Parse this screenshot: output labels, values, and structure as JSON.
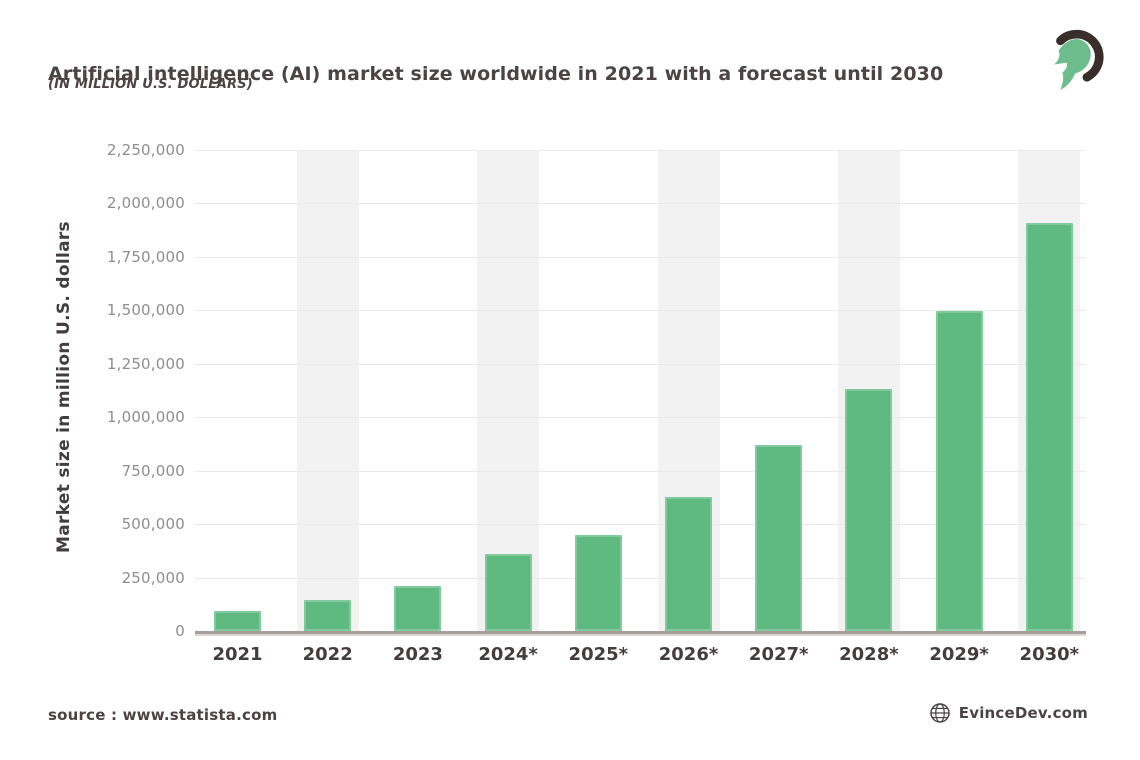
{
  "header": {
    "title": "Artificial intelligence (AI) market size worldwide in 2021 with a forecast until 2030",
    "subtitle": "(IN MILLION U.S. DOLLARS)",
    "logo_icon": "spartan-helmet-logo"
  },
  "chart_data": {
    "type": "bar",
    "title": "Artificial intelligence (AI) market size worldwide in 2021 with a forecast until 2030",
    "subtitle": "(IN MILLION U.S. DOLLARS)",
    "categories": [
      "2021",
      "2022",
      "2023",
      "2024*",
      "2025*",
      "2026*",
      "2027*",
      "2028*",
      "2029*",
      "2030*"
    ],
    "values": [
      95000,
      145000,
      210000,
      360000,
      450000,
      625000,
      870000,
      1130000,
      1495000,
      1910000
    ],
    "xlabel": "",
    "ylabel": "Market size in million U.S. dollars",
    "ylim": [
      0,
      2250000
    ],
    "ytick_step": 250000,
    "ytick_labels": [
      "0",
      "250,000",
      "500,000",
      "750,000",
      "1,000,000",
      "1,250,000",
      "1,500,000",
      "1,750,000",
      "2,000,000",
      "2,250,000"
    ],
    "grid": true,
    "legend": "none",
    "striped_columns": [
      1,
      3,
      5,
      7,
      9
    ],
    "bar_color": "#5FBA82",
    "stripe_color": "#F2F2F2"
  },
  "footer": {
    "source": "source : www.statista.com",
    "brand": "EvinceDev.com",
    "brand_icon": "globe-icon"
  },
  "colors": {
    "bar_green": "#5FBA82",
    "logo_green": "#6CBD8B",
    "logo_dark": "#3A2E2B",
    "dark_text": "#4C4344",
    "tick_text": "#8F8D8D",
    "gridline": "#E9E9E9",
    "stripe": "#F2F2F2",
    "axis_line": "#A79D99",
    "background": "#FFFFFF"
  }
}
